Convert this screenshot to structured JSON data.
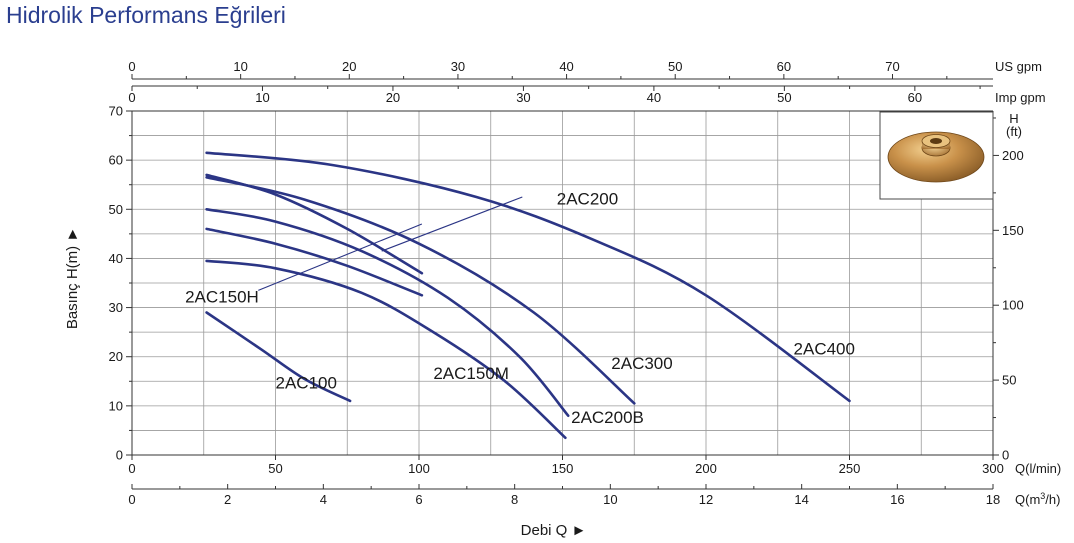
{
  "title": "Hidrolik Performans Eğrileri",
  "chart_data": {
    "type": "line",
    "xlabel": "Debi Q ►",
    "ylabel": "Basınç H(m) ►",
    "xlim": [
      0,
      300
    ],
    "ylim": [
      0,
      70
    ],
    "grid": true,
    "colors": {
      "curve": "#2b3585",
      "grid": "#9a9a9a",
      "text": "#1a1a1a",
      "title": "#2a3e8f"
    },
    "axes": {
      "bottom_primary": {
        "unit": "Q(l/min)",
        "ticks": [
          0,
          50,
          100,
          150,
          200,
          250,
          300
        ]
      },
      "bottom_secondary": {
        "unit": "Q(m³/h)",
        "max": 18,
        "ticks": [
          0,
          2,
          4,
          6,
          8,
          10,
          12,
          14,
          16,
          18
        ]
      },
      "top_us": {
        "unit": "US gpm",
        "max": 79.25,
        "ticks": [
          0,
          10,
          20,
          30,
          40,
          50,
          60,
          70
        ]
      },
      "top_imp": {
        "unit": "Imp gpm",
        "max": 65.99,
        "ticks": [
          0,
          10,
          20,
          30,
          40,
          50,
          60
        ]
      },
      "left": {
        "unit": "",
        "ticks": [
          0,
          10,
          20,
          30,
          40,
          50,
          60,
          70
        ]
      },
      "right": {
        "unit_line1": "H",
        "unit_line2": "(ft)",
        "max": 229.66,
        "ticks": [
          0,
          50,
          100,
          150,
          200
        ]
      }
    },
    "series": [
      {
        "name": "2AC100",
        "x": [
          26,
          45,
          60,
          76
        ],
        "y": [
          29,
          21.5,
          15.5,
          11
        ]
      },
      {
        "name": "2AC150M",
        "x": [
          26,
          50,
          80,
          105,
          130,
          151
        ],
        "y": [
          39.5,
          38,
          33,
          25,
          15,
          3.5
        ]
      },
      {
        "name": "2AC150H",
        "x": [
          26,
          50,
          75,
          101
        ],
        "y": [
          46,
          43,
          38.5,
          32.5
        ]
      },
      {
        "name": "2AC200",
        "x": [
          26,
          50,
          75,
          101
        ],
        "y": [
          57,
          53,
          46,
          37
        ]
      },
      {
        "name": "2AC200B",
        "x": [
          26,
          50,
          80,
          110,
          135,
          152
        ],
        "y": [
          50,
          47.5,
          41.5,
          32,
          20,
          8
        ]
      },
      {
        "name": "2AC300",
        "x": [
          26,
          60,
          100,
          140,
          175
        ],
        "y": [
          56.5,
          52,
          43,
          29,
          10.5
        ]
      },
      {
        "name": "2AC400",
        "x": [
          26,
          70,
          120,
          160,
          200,
          250
        ],
        "y": [
          61.5,
          59,
          52.5,
          44,
          32.5,
          11
        ]
      }
    ],
    "labels": [
      {
        "text": "2AC100",
        "x": 50,
        "y": 13.5
      },
      {
        "text": "2AC150M",
        "x": 105,
        "y": 15.5
      },
      {
        "text": "2AC150H",
        "x": 18.5,
        "y": 31
      },
      {
        "text": "2AC200",
        "x": 148,
        "y": 51
      },
      {
        "text": "2AC200B",
        "x": 153,
        "y": 6.5
      },
      {
        "text": "2AC300",
        "x": 167,
        "y": 17.5
      },
      {
        "text": "2AC400",
        "x": 230.5,
        "y": 20.5
      }
    ],
    "leaders": [
      {
        "from": [
          44,
          33.5
        ],
        "to": [
          101,
          47
        ]
      },
      {
        "from": [
          136,
          52.5
        ],
        "to": [
          87,
          41.5
        ]
      }
    ]
  },
  "impeller": {
    "image": "bronze-impeller-photo",
    "position": "top-right"
  }
}
